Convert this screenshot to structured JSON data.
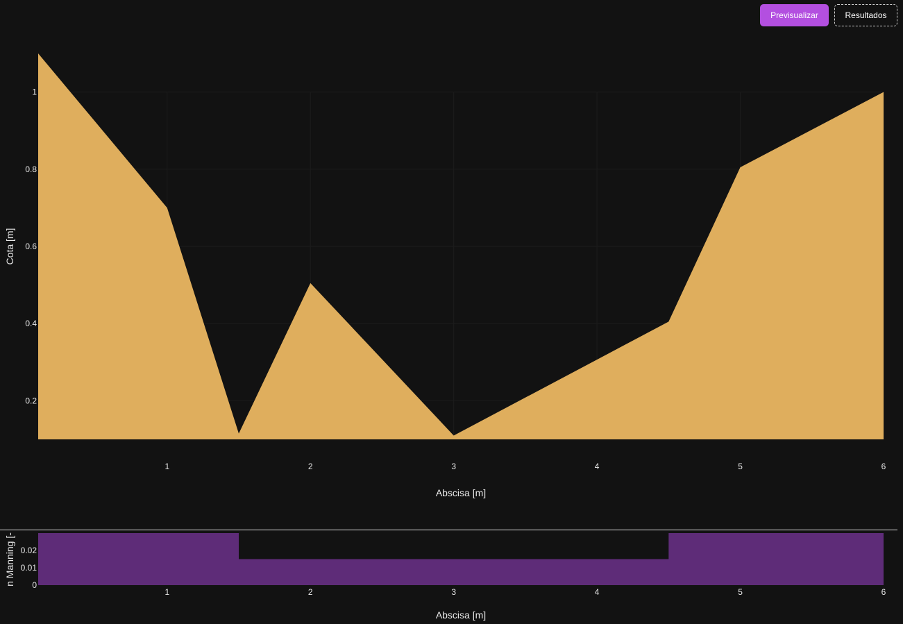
{
  "toolbar": {
    "preview_label": "Previsualizar",
    "results_label": "Resultados"
  },
  "colors": {
    "background": "#121212",
    "area_fill": "#dfae5d",
    "manning_fill": "#5e2c78",
    "accent": "#b34fe0",
    "grid": "#1c1c1c",
    "text": "#e8e8e8"
  },
  "chart_data": [
    {
      "type": "area",
      "title": "",
      "xlabel": "Abscisa [m]",
      "ylabel": "Cota [m]",
      "xlim": [
        0.1,
        6.0
      ],
      "ylim": [
        0.1,
        1.1
      ],
      "xticks": [
        1,
        2,
        3,
        4,
        5,
        6
      ],
      "xtick_labels": [
        "1",
        "2",
        "3",
        "4",
        "5",
        "6"
      ],
      "yticks": [
        0.2,
        0.4,
        0.6,
        0.8,
        1.0
      ],
      "ytick_labels": [
        "0.2",
        "0.4",
        "0.6",
        "0.8",
        "1"
      ],
      "grid": true,
      "baseline": 0.1,
      "x": [
        0.1,
        1.0,
        1.5,
        2.0,
        3.0,
        4.5,
        5.0,
        6.0
      ],
      "y": [
        1.1,
        0.7,
        0.115,
        0.505,
        0.11,
        0.405,
        0.805,
        1.0
      ]
    },
    {
      "type": "area",
      "title": "",
      "xlabel": "Abscisa [m]",
      "ylabel": "n Manning [-",
      "xlim": [
        0.1,
        6.0
      ],
      "ylim": [
        0,
        0.03
      ],
      "xticks": [
        1,
        2,
        3,
        4,
        5,
        6
      ],
      "xtick_labels": [
        "1",
        "2",
        "3",
        "4",
        "5",
        "6"
      ],
      "yticks": [
        0,
        0.01,
        0.02
      ],
      "ytick_labels": [
        "0",
        "0.01",
        "0.02"
      ],
      "grid": false,
      "step": true,
      "x": [
        0.1,
        1.5,
        1.5,
        4.5,
        4.5,
        6.0
      ],
      "y": [
        0.03,
        0.03,
        0.015,
        0.015,
        0.03,
        0.03
      ]
    }
  ]
}
